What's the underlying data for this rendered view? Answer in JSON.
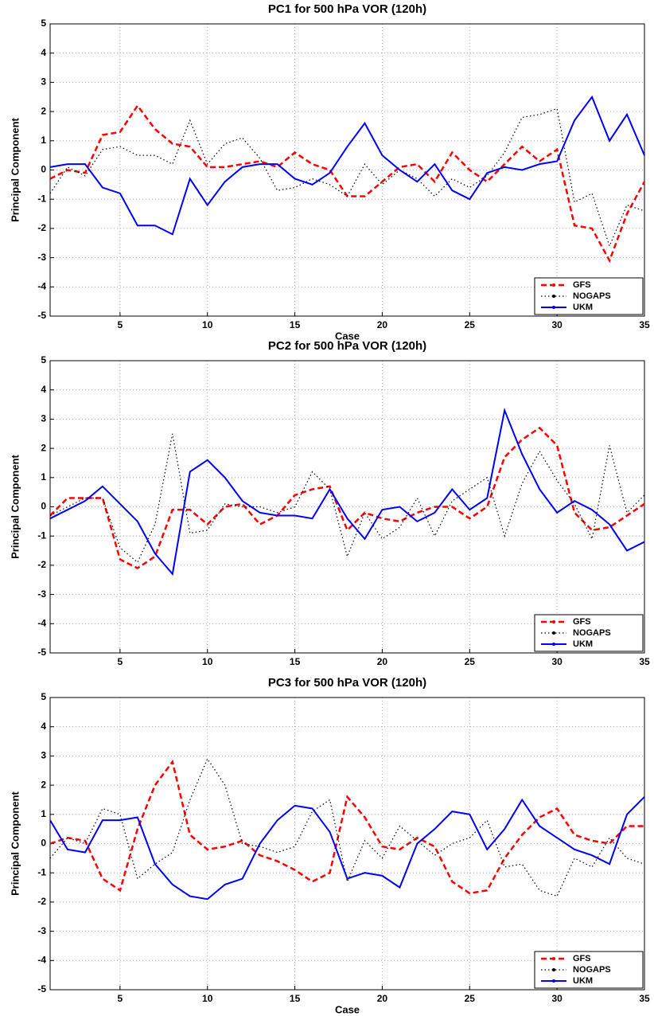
{
  "chart_data": [
    {
      "type": "line",
      "title": "PC1 for 500 hPa VOR (120h)",
      "xlabel": "Case",
      "ylabel": "Principal Component",
      "x": [
        1,
        2,
        3,
        4,
        5,
        6,
        7,
        8,
        9,
        10,
        11,
        12,
        13,
        14,
        15,
        16,
        17,
        18,
        19,
        20,
        21,
        22,
        23,
        24,
        25,
        26,
        27,
        28,
        29,
        30,
        31,
        32,
        33,
        34,
        35
      ],
      "xlim": [
        1,
        35
      ],
      "xticks": [
        5,
        10,
        15,
        20,
        25,
        30,
        35
      ],
      "ylim": [
        -5,
        5
      ],
      "yticks": [
        -5,
        -4,
        -3,
        -2,
        -1,
        0,
        1,
        2,
        3,
        4,
        5
      ],
      "grid": true,
      "legend": "lower right",
      "series": [
        {
          "name": "GFS",
          "color": "#ff0000",
          "style": "dashed",
          "values": [
            -0.3,
            0.0,
            -0.1,
            1.2,
            1.3,
            2.2,
            1.4,
            0.9,
            0.8,
            0.1,
            0.1,
            0.2,
            0.3,
            0.1,
            0.6,
            0.2,
            0.0,
            -0.9,
            -0.9,
            -0.4,
            0.1,
            0.2,
            -0.4,
            0.6,
            0.0,
            -0.4,
            0.2,
            0.8,
            0.3,
            0.7,
            -1.9,
            -2.0,
            -3.1,
            -1.5,
            -0.4
          ]
        },
        {
          "name": "NOGAPS",
          "color": "#000000",
          "style": "dotted",
          "values": [
            -0.8,
            0.1,
            -0.2,
            0.7,
            0.8,
            0.5,
            0.5,
            0.2,
            1.7,
            0.2,
            0.9,
            1.1,
            0.4,
            -0.7,
            -0.6,
            -0.3,
            -0.5,
            -0.9,
            0.2,
            -0.5,
            0.0,
            -0.3,
            -0.9,
            -0.3,
            -0.6,
            -0.2,
            0.6,
            1.8,
            1.9,
            2.1,
            -1.1,
            -0.8,
            -2.6,
            -1.2,
            -1.4
          ]
        },
        {
          "name": "UKM",
          "color": "#0000ff",
          "style": "solid",
          "values": [
            0.1,
            0.2,
            0.2,
            -0.6,
            -0.8,
            -1.9,
            -1.9,
            -2.2,
            -0.3,
            -1.2,
            -0.4,
            0.1,
            0.2,
            0.2,
            -0.3,
            -0.5,
            -0.1,
            0.8,
            1.6,
            0.5,
            0.0,
            -0.4,
            0.2,
            -0.7,
            -1.0,
            -0.1,
            0.1,
            0.0,
            0.2,
            0.3,
            1.7,
            2.5,
            1.0,
            1.9,
            0.5
          ]
        }
      ]
    },
    {
      "type": "line",
      "title": "PC2 for 500 hPa VOR (120h)",
      "ylabel": "Principal Component",
      "x": [
        1,
        2,
        3,
        4,
        5,
        6,
        7,
        8,
        9,
        10,
        11,
        12,
        13,
        14,
        15,
        16,
        17,
        18,
        19,
        20,
        21,
        22,
        23,
        24,
        25,
        26,
        27,
        28,
        29,
        30,
        31,
        32,
        33,
        34,
        35
      ],
      "xlim": [
        1,
        35
      ],
      "xticks": [
        5,
        10,
        15,
        20,
        25,
        30,
        35
      ],
      "ylim": [
        -5,
        5
      ],
      "yticks": [
        -5,
        -4,
        -3,
        -2,
        -1,
        0,
        1,
        2,
        3,
        4,
        5
      ],
      "grid": true,
      "legend": "lower right",
      "series": [
        {
          "name": "GFS",
          "color": "#ff0000",
          "style": "dashed",
          "values": [
            -0.3,
            0.3,
            0.3,
            0.3,
            -1.8,
            -2.1,
            -1.7,
            -0.1,
            -0.1,
            -0.6,
            0.0,
            0.1,
            -0.6,
            -0.3,
            0.4,
            0.6,
            0.7,
            -0.8,
            -0.2,
            -0.4,
            -0.5,
            -0.2,
            0.0,
            0.0,
            -0.4,
            0.0,
            1.7,
            2.3,
            2.7,
            2.1,
            -0.2,
            -0.8,
            -0.7,
            -0.3,
            0.1
          ]
        },
        {
          "name": "NOGAPS",
          "color": "#000000",
          "style": "dotted",
          "values": [
            -0.3,
            0.0,
            0.3,
            0.3,
            -1.4,
            -1.9,
            -0.6,
            2.5,
            -0.9,
            -0.8,
            0.1,
            0.0,
            0.0,
            -0.2,
            0.0,
            1.2,
            0.6,
            -1.7,
            -0.2,
            -1.1,
            -0.7,
            0.3,
            -1.0,
            0.2,
            0.6,
            1.0,
            -1.0,
            0.8,
            1.9,
            0.9,
            0.1,
            -1.1,
            2.1,
            -0.2,
            0.4
          ]
        },
        {
          "name": "UKM",
          "color": "#0000ff",
          "style": "solid",
          "values": [
            -0.4,
            -0.1,
            0.2,
            0.7,
            0.1,
            -0.5,
            -1.6,
            -2.3,
            1.2,
            1.6,
            1.0,
            0.2,
            -0.2,
            -0.3,
            -0.3,
            -0.4,
            0.6,
            -0.4,
            -1.1,
            -0.1,
            0.0,
            -0.5,
            -0.2,
            0.6,
            -0.1,
            0.3,
            3.3,
            1.8,
            0.6,
            -0.2,
            0.2,
            -0.1,
            -0.6,
            -1.5,
            -1.2
          ]
        }
      ]
    },
    {
      "type": "line",
      "title": "PC3 for 500 hPa VOR (120h)",
      "xlabel": "Case",
      "ylabel": "Principal Component",
      "x": [
        1,
        2,
        3,
        4,
        5,
        6,
        7,
        8,
        9,
        10,
        11,
        12,
        13,
        14,
        15,
        16,
        17,
        18,
        19,
        20,
        21,
        22,
        23,
        24,
        25,
        26,
        27,
        28,
        29,
        30,
        31,
        32,
        33,
        34,
        35
      ],
      "xlim": [
        1,
        35
      ],
      "xticks": [
        5,
        10,
        15,
        20,
        25,
        30,
        35
      ],
      "ylim": [
        -5,
        5
      ],
      "yticks": [
        -5,
        -4,
        -3,
        -2,
        -1,
        0,
        1,
        2,
        3,
        4,
        5
      ],
      "grid": true,
      "legend": "lower right",
      "series": [
        {
          "name": "GFS",
          "color": "#ff0000",
          "style": "dashed",
          "values": [
            0.0,
            0.2,
            0.1,
            -1.2,
            -1.6,
            0.5,
            2.0,
            2.8,
            0.3,
            -0.2,
            -0.1,
            0.1,
            -0.4,
            -0.6,
            -0.9,
            -1.3,
            -1.0,
            1.6,
            0.9,
            -0.1,
            -0.2,
            0.2,
            -0.1,
            -1.3,
            -1.7,
            -1.6,
            -0.5,
            0.3,
            0.9,
            1.2,
            0.3,
            0.1,
            0.0,
            0.6,
            0.6
          ]
        },
        {
          "name": "NOGAPS",
          "color": "#000000",
          "style": "dotted",
          "values": [
            -0.5,
            0.2,
            0.0,
            1.2,
            1.0,
            -1.2,
            -0.7,
            -0.3,
            1.5,
            2.9,
            2.0,
            0.0,
            -0.1,
            -0.3,
            -0.1,
            1.1,
            1.5,
            -1.3,
            0.1,
            -0.5,
            0.6,
            0.1,
            -0.4,
            0.0,
            0.2,
            0.8,
            -0.8,
            -0.7,
            -1.6,
            -1.8,
            -0.5,
            -0.8,
            0.2,
            -0.5,
            -0.7
          ]
        },
        {
          "name": "UKM",
          "color": "#0000ff",
          "style": "solid",
          "values": [
            0.8,
            -0.2,
            -0.3,
            0.8,
            0.8,
            0.9,
            -0.7,
            -1.4,
            -1.8,
            -1.9,
            -1.4,
            -1.2,
            0.0,
            0.8,
            1.3,
            1.2,
            0.4,
            -1.2,
            -1.0,
            -1.1,
            -1.5,
            0.0,
            0.5,
            1.1,
            1.0,
            -0.2,
            0.5,
            1.5,
            0.6,
            0.2,
            -0.2,
            -0.4,
            -0.7,
            1.0,
            1.6
          ]
        }
      ]
    }
  ]
}
